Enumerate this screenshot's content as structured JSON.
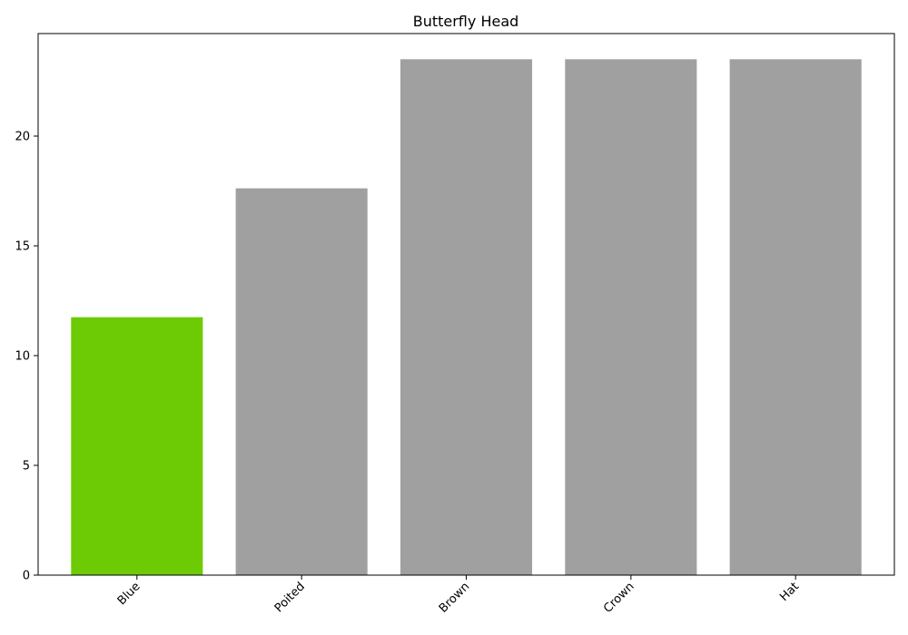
{
  "chart_data": {
    "type": "bar",
    "title": "Butterfly Head",
    "xlabel": "",
    "ylabel": "",
    "categories": [
      "Blue",
      "Poited",
      "Brown",
      "Crown",
      "Hat"
    ],
    "values": [
      11.75,
      17.62,
      23.5,
      23.5,
      23.5
    ],
    "bar_colors": [
      "#6ccb05",
      "#a0a0a0",
      "#a0a0a0",
      "#a0a0a0",
      "#a0a0a0"
    ],
    "ylim": [
      0,
      24.67
    ],
    "yticks": [
      0,
      5,
      10,
      15,
      20
    ],
    "x_tick_rotation_deg": 45,
    "grid": false,
    "legend": "none"
  }
}
